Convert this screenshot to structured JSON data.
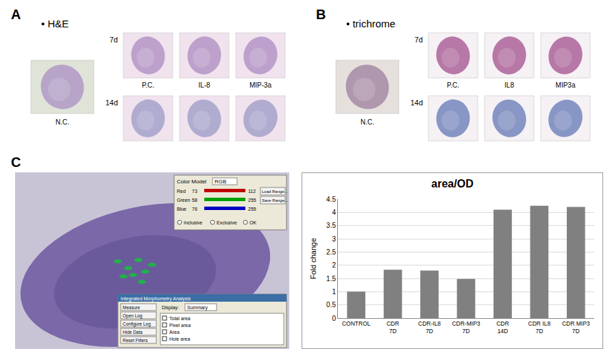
{
  "panels": [
    {
      "letter": "A",
      "heading": "• H&E",
      "control": "N.C.",
      "rows": [
        "7d",
        "14d"
      ],
      "columns": [
        "P.C.",
        "IL-8",
        "MIP-3a"
      ]
    },
    {
      "letter": "B",
      "heading": "• trichrome",
      "control": "N.C.",
      "rows": [
        "7d",
        "14d"
      ],
      "columns": [
        "P.C.",
        "IL8",
        "MIP3a"
      ]
    },
    {
      "letter": "C"
    }
  ],
  "screenshot": {
    "color_model_label": "Color Model",
    "color_model": "RGB",
    "channels": [
      {
        "name": "Red",
        "min": 73,
        "max": 112
      },
      {
        "name": "Green",
        "min": 58,
        "max": 255
      },
      {
        "name": "Blue",
        "min": 76,
        "max": 255
      }
    ],
    "buttons": [
      "Load Range...",
      "Save Range..."
    ],
    "options": [
      "Inclusive",
      "Exclusive",
      "OK"
    ],
    "analysis_title": "Integrated Morphometry Analysis",
    "analysis_buttons": [
      "Measure",
      "Open Log",
      "Configure Log",
      "Hide Data",
      "Reset Filters"
    ],
    "display_label": "Display:",
    "display": "Summary",
    "measurements": [
      "Total area",
      "Pixel area",
      "Area",
      "Hole area"
    ]
  },
  "chart_data": {
    "type": "bar",
    "title": "area/OD",
    "y_label": "Fold change",
    "categories": [
      "CONTROL",
      "CDR 7D",
      "CDR-IL8 7D",
      "CDR-MIP3 7D",
      "CDR 14D",
      "CDR IL8 7D",
      "CDR MIP3 7D"
    ],
    "values": [
      1,
      1.83,
      1.8,
      1.48,
      4.1,
      4.25,
      4.2
    ],
    "color": "#808080",
    "ylim": [
      0,
      4.5
    ],
    "yticks": [
      0,
      0.5,
      1,
      1.5,
      2,
      2.5,
      3,
      3.5,
      4,
      4.5
    ],
    "grid": true
  }
}
